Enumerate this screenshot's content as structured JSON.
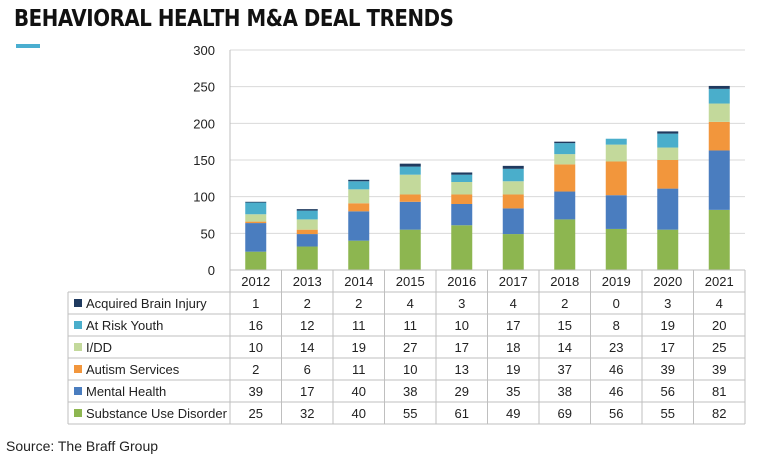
{
  "title": "BEHAVIORAL HEALTH M&A DEAL TRENDS",
  "source": "Source: The Braff Group",
  "chart_data": {
    "type": "bar",
    "stacked": true,
    "categories": [
      "2012",
      "2013",
      "2014",
      "2015",
      "2016",
      "2017",
      "2018",
      "2019",
      "2020",
      "2021"
    ],
    "ylim": [
      0,
      300
    ],
    "yticks": [
      0,
      50,
      100,
      150,
      200,
      250,
      300
    ],
    "grid": true,
    "legend": "data-table",
    "series": [
      {
        "name": "Substance Use Disorder",
        "color": "#8db650",
        "values": [
          25,
          32,
          40,
          55,
          61,
          49,
          69,
          56,
          55,
          82
        ]
      },
      {
        "name": "Mental Health",
        "color": "#4a7dbf",
        "values": [
          39,
          17,
          40,
          38,
          29,
          35,
          38,
          46,
          56,
          81
        ]
      },
      {
        "name": "Autism Services",
        "color": "#f2963c",
        "values": [
          2,
          6,
          11,
          10,
          13,
          19,
          37,
          46,
          39,
          39
        ]
      },
      {
        "name": "I/DD",
        "color": "#c3d99b",
        "values": [
          10,
          14,
          19,
          27,
          17,
          18,
          14,
          23,
          17,
          25
        ]
      },
      {
        "name": "At Risk Youth",
        "color": "#4aaecb",
        "values": [
          16,
          12,
          11,
          11,
          10,
          17,
          15,
          8,
          19,
          20
        ]
      },
      {
        "name": "Acquired Brain Injury",
        "color": "#1f3a5f",
        "values": [
          1,
          2,
          2,
          4,
          3,
          4,
          2,
          0,
          3,
          4
        ]
      }
    ],
    "table_row_order": [
      "Acquired Brain Injury",
      "At Risk Youth",
      "I/DD",
      "Autism Services",
      "Mental Health",
      "Substance Use Disorder"
    ]
  }
}
